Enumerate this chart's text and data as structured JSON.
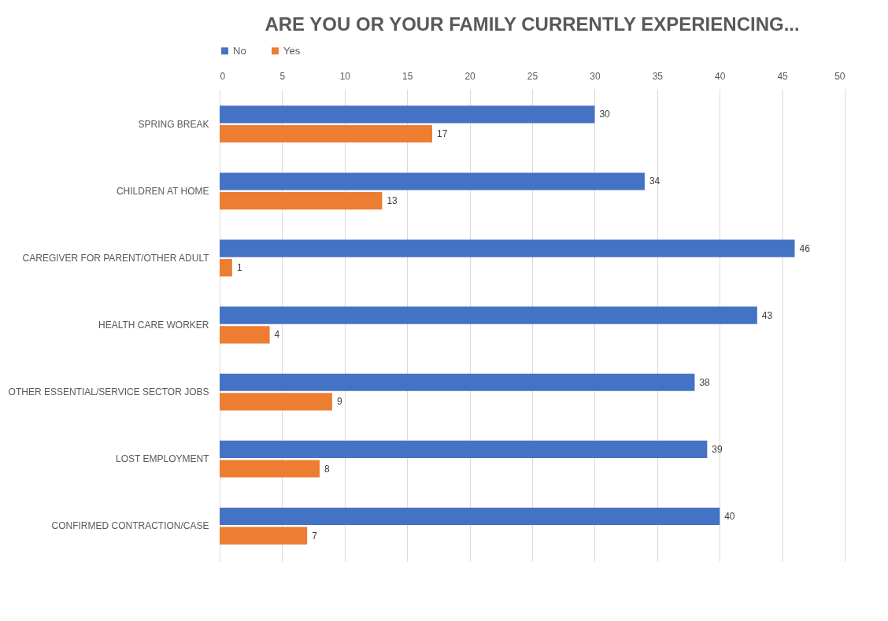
{
  "chart_data": {
    "type": "bar",
    "orientation": "horizontal",
    "title": "ARE YOU OR YOUR FAMILY CURRENTLY EXPERIENCING...",
    "categories": [
      "SPRING BREAK",
      "CHILDREN AT HOME",
      "CAREGIVER FOR PARENT/OTHER ADULT",
      "HEALTH CARE WORKER",
      "OTHER ESSENTIAL/SERVICE SECTOR JOBS",
      "LOST EMPLOYMENT",
      "CONFIRMED CONTRACTION/CASE"
    ],
    "series": [
      {
        "name": "No",
        "color": "#4472c4",
        "values": [
          30,
          34,
          46,
          43,
          38,
          39,
          40
        ]
      },
      {
        "name": "Yes",
        "color": "#ed7d31",
        "values": [
          17,
          13,
          1,
          4,
          9,
          8,
          7
        ]
      }
    ],
    "xlim": [
      0,
      50
    ],
    "xticks": [
      0,
      5,
      10,
      15,
      20,
      25,
      30,
      35,
      40,
      45,
      50
    ],
    "grid": "x",
    "legend": "top",
    "data_labels": true
  }
}
